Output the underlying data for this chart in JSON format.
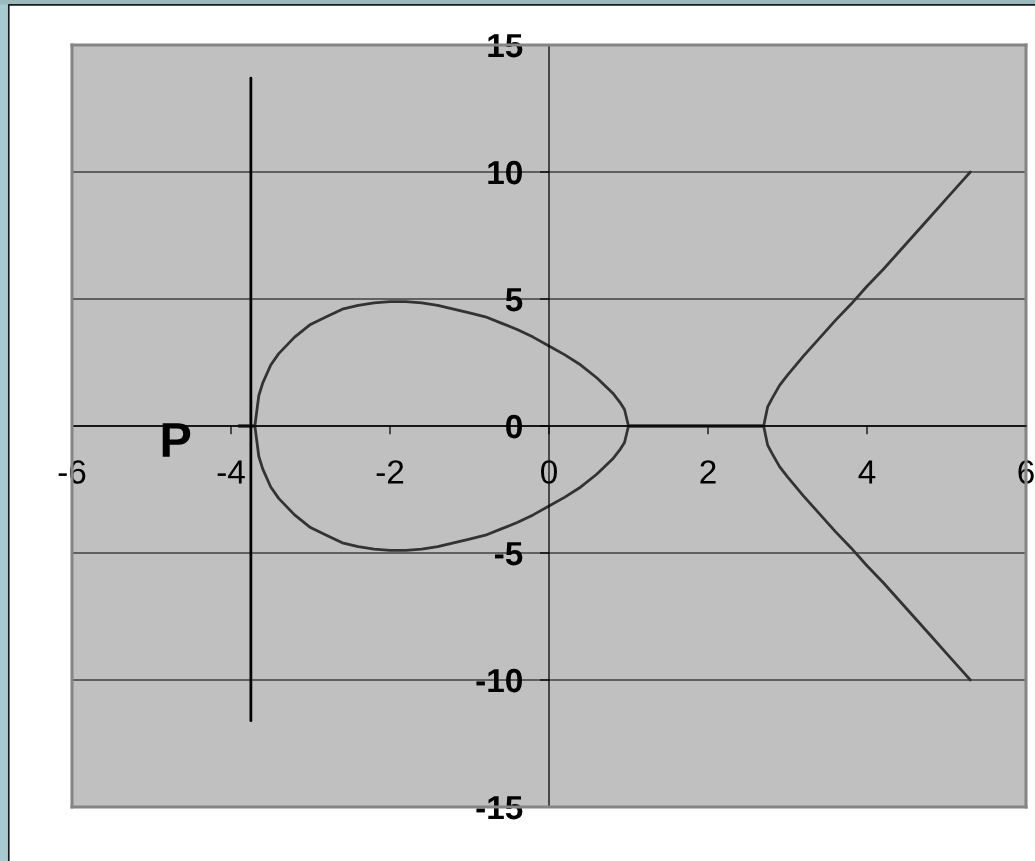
{
  "chart_data": {
    "type": "line",
    "series": [
      {
        "color": "#333333",
        "x": [
          -3.9,
          -3.7,
          -3.65,
          -3.6,
          -3.5,
          -3.4,
          -3.2,
          -3.0,
          -2.8,
          -2.6,
          -2.4,
          -2.2,
          -2.0,
          -1.8,
          -1.6,
          -1.4,
          -1.2,
          -1.0,
          -0.8,
          -0.6,
          -0.4,
          -0.2,
          0,
          0.2,
          0.4,
          0.6,
          0.8,
          0.9,
          0.95,
          1.0,
          2.7,
          2.75,
          2.8,
          2.9,
          3.0,
          3.2,
          3.4,
          3.6,
          3.8,
          4.0,
          4.2,
          4.4,
          4.6,
          4.8,
          5.0,
          5.2,
          5.3
        ],
        "values": [
          0,
          0,
          1.2,
          1.7,
          2.4,
          2.85,
          3.5,
          4.0,
          4.3,
          4.6,
          4.75,
          4.85,
          4.9,
          4.9,
          4.85,
          4.75,
          4.6,
          4.45,
          4.3,
          4.05,
          3.8,
          3.5,
          3.15,
          2.8,
          2.4,
          1.9,
          1.3,
          0.9,
          0.65,
          0,
          0,
          0.75,
          1.05,
          1.6,
          2.0,
          2.75,
          3.45,
          4.15,
          4.8,
          5.5,
          6.15,
          6.85,
          7.55,
          8.25,
          8.95,
          9.65,
          10.0
        ]
      },
      {
        "color": "#333333",
        "x": [
          -3.9,
          -3.7,
          -3.65,
          -3.6,
          -3.5,
          -3.4,
          -3.2,
          -3.0,
          -2.8,
          -2.6,
          -2.4,
          -2.2,
          -2.0,
          -1.8,
          -1.6,
          -1.4,
          -1.2,
          -1.0,
          -0.8,
          -0.6,
          -0.4,
          -0.2,
          0,
          0.2,
          0.4,
          0.6,
          0.8,
          0.9,
          0.95,
          1.0,
          2.7,
          2.75,
          2.8,
          2.9,
          3.0,
          3.2,
          3.4,
          3.6,
          3.8,
          4.0,
          4.2,
          4.4,
          4.6,
          4.8,
          5.0,
          5.2,
          5.3
        ],
        "values": [
          0,
          0,
          -1.2,
          -1.7,
          -2.4,
          -2.85,
          -3.5,
          -4.0,
          -4.3,
          -4.6,
          -4.75,
          -4.85,
          -4.9,
          -4.9,
          -4.85,
          -4.75,
          -4.6,
          -4.45,
          -4.3,
          -4.05,
          -3.8,
          -3.5,
          -3.15,
          -2.8,
          -2.4,
          -1.9,
          -1.3,
          -0.9,
          -0.65,
          0,
          0,
          -0.75,
          -1.05,
          -1.6,
          -2.0,
          -2.75,
          -3.45,
          -4.15,
          -4.8,
          -5.5,
          -6.15,
          -6.85,
          -7.55,
          -8.25,
          -8.95,
          -9.65,
          -10.0
        ]
      },
      {
        "color": "#000000",
        "x": [
          -3.75,
          -3.75
        ],
        "values": [
          13.7,
          -11.6
        ]
      }
    ],
    "xlim": [
      -6,
      6
    ],
    "ylim": [
      -15,
      15
    ],
    "xticks": [
      -6,
      -4,
      -2,
      0,
      2,
      4,
      6
    ],
    "yticks": [
      -15,
      -10,
      -5,
      0,
      5,
      10,
      15
    ],
    "grid": "y",
    "annotations": [
      {
        "text": "P",
        "x": -3.7,
        "y": 0
      }
    ]
  }
}
